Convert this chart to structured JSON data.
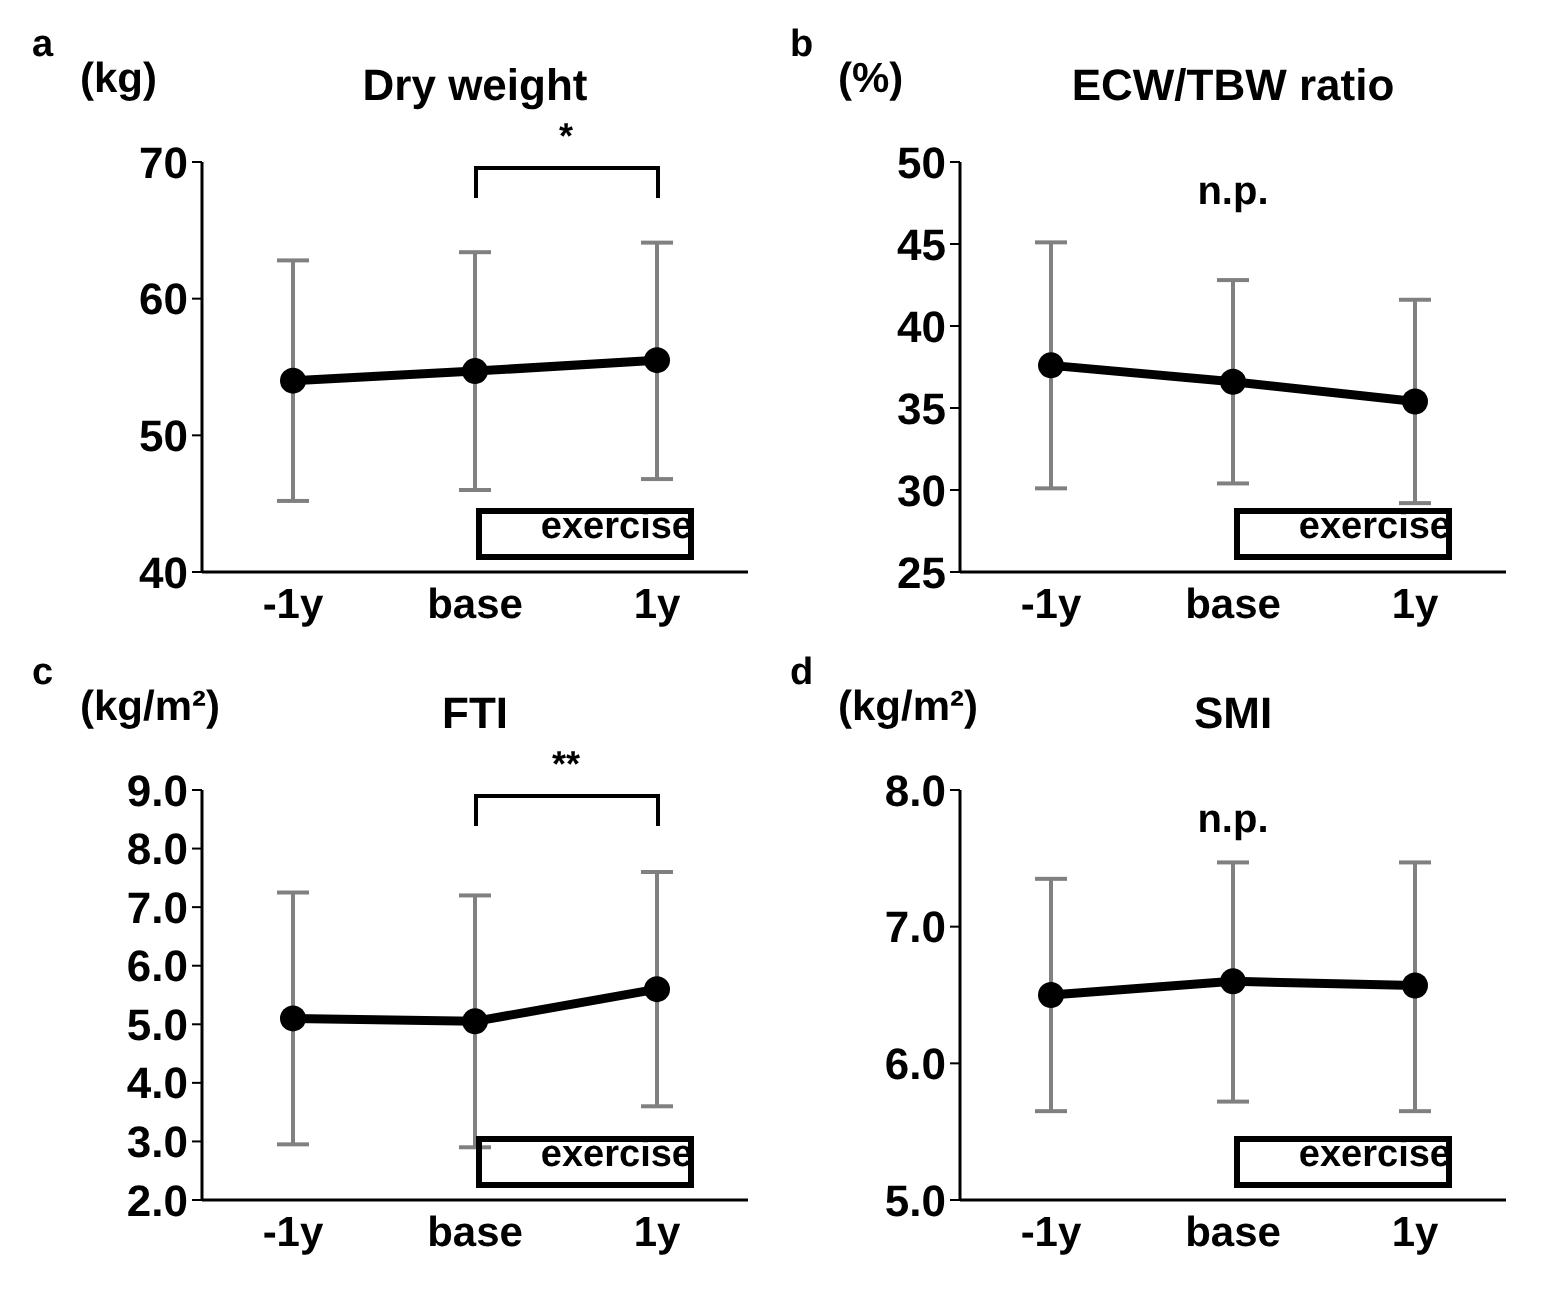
{
  "chart_data": [
    {
      "type": "line",
      "title": "Dry weight",
      "ylabel": "(kg)",
      "categories": [
        "-1y",
        "base",
        "1y"
      ],
      "color": "#000000",
      "marker": "circle",
      "line_style": "solid",
      "values": [
        54.0,
        54.7,
        55.5
      ],
      "errors": [
        [
          45.2,
          62.8
        ],
        [
          46.0,
          63.4
        ],
        [
          46.8,
          64.1
        ]
      ],
      "ylim": [
        40,
        70
      ],
      "yticks": [
        40,
        50,
        60,
        70
      ],
      "annotations": [
        "a",
        {
          "text": "*"
        },
        "exercise"
      ]
    },
    {
      "type": "line",
      "title": "ECW/TBW ratio",
      "ylabel": "(%)",
      "categories": [
        "-1y",
        "base",
        "1y"
      ],
      "color": "#000000",
      "marker": "circle",
      "line_style": "solid",
      "values": [
        37.6,
        36.6,
        35.4
      ],
      "errors": [
        [
          30.1,
          45.1
        ],
        [
          30.4,
          42.8
        ],
        [
          29.2,
          41.6
        ]
      ],
      "ylim": [
        25,
        50
      ],
      "yticks": [
        25,
        30,
        35,
        40,
        45,
        50
      ],
      "annotations": [
        "b",
        "n.p.",
        "exercise"
      ]
    },
    {
      "type": "line",
      "title": "FTI",
      "ylabel": "(kg/m²)",
      "categories": [
        "-1y",
        "base",
        "1y"
      ],
      "color": "#000000",
      "marker": "circle",
      "line_style": "solid",
      "values": [
        5.1,
        5.05,
        5.6
      ],
      "errors": [
        [
          2.95,
          7.25
        ],
        [
          2.9,
          7.2
        ],
        [
          3.6,
          7.6
        ]
      ],
      "ylim": [
        2,
        9
      ],
      "yticks": [
        {
          "value": 2,
          "label": "2.0"
        },
        {
          "value": 3,
          "label": "3.0"
        },
        {
          "value": 4,
          "label": "4.0"
        },
        {
          "value": 5,
          "label": "5.0"
        },
        {
          "value": 6,
          "label": "6.0"
        },
        {
          "value": 7,
          "label": "7.0"
        },
        {
          "value": 8,
          "label": "8.0"
        },
        {
          "value": 9,
          "label": "9.0"
        }
      ],
      "annotations": [
        "c",
        {
          "text": "**"
        },
        "exercise"
      ]
    },
    {
      "type": "line",
      "title": "SMI",
      "ylabel": "(kg/m²)",
      "categories": [
        "-1y",
        "base",
        "1y"
      ],
      "color": "#000000",
      "marker": "circle",
      "line_style": "solid",
      "values": [
        6.5,
        6.6,
        6.57
      ],
      "errors": [
        [
          5.65,
          7.35
        ],
        [
          5.72,
          7.47
        ],
        [
          5.65,
          7.47
        ]
      ],
      "ylim": [
        5,
        8
      ],
      "yticks": [
        {
          "value": 5,
          "label": "5.0"
        },
        {
          "value": 6,
          "label": "6.0"
        },
        {
          "value": 7,
          "label": "7.0"
        },
        {
          "value": 8,
          "label": "8.0"
        }
      ],
      "annotations": [
        "d",
        "n.p.",
        "exercise"
      ]
    }
  ]
}
